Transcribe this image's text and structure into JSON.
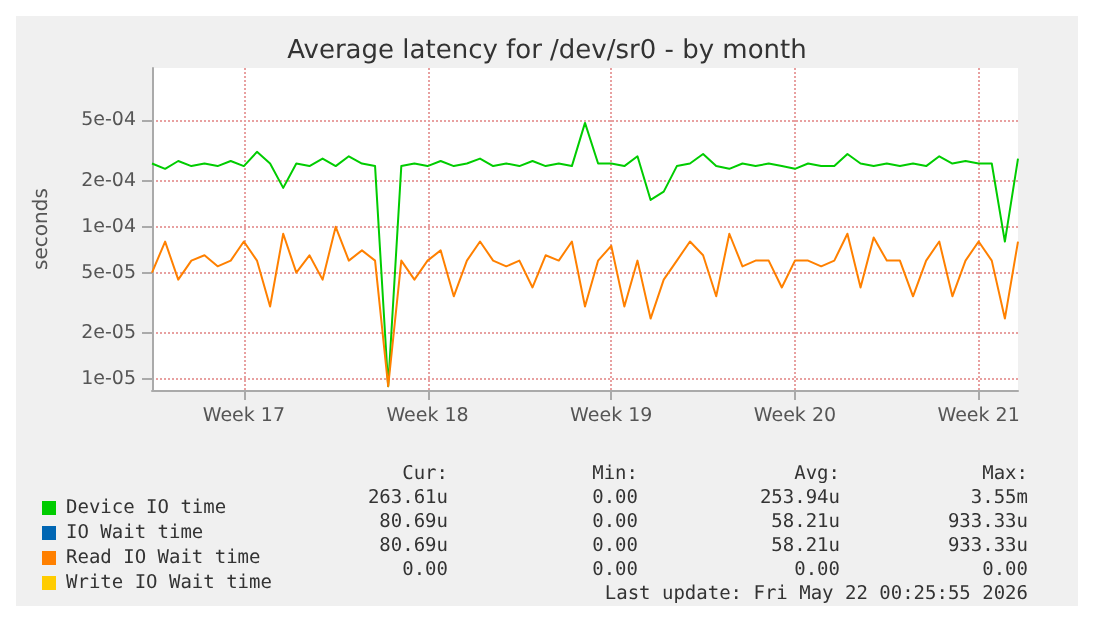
{
  "chart_data": {
    "type": "line",
    "title": "Average latency for /dev/sr0 - by month",
    "ylabel": "seconds",
    "categories": [
      null,
      null,
      null,
      null,
      null,
      null,
      null,
      "Week 17",
      null,
      null,
      null,
      null,
      null,
      null,
      null,
      null,
      null,
      null,
      null,
      null,
      null,
      "Week 18",
      null,
      null,
      null,
      null,
      null,
      null,
      null,
      null,
      null,
      null,
      null,
      null,
      null,
      "Week 19",
      null,
      null,
      null,
      null,
      null,
      null,
      null,
      null,
      null,
      null,
      null,
      null,
      null,
      "Week 20",
      null,
      null,
      null,
      null,
      null,
      null,
      null,
      null,
      null,
      null,
      null,
      null,
      null,
      "Week 21",
      null,
      null,
      null
    ],
    "series": [
      {
        "name": "Device IO time",
        "color": "#00cc00",
        "values": [
          0.00026,
          0.00024,
          0.00027,
          0.00025,
          0.00026,
          0.00025,
          0.00027,
          0.00025,
          0.00031,
          0.00026,
          0.00018,
          0.00026,
          0.00025,
          0.00028,
          0.00025,
          0.00029,
          0.00026,
          0.00025,
          9e-06,
          0.00025,
          0.00026,
          0.00025,
          0.00027,
          0.00025,
          0.00026,
          0.00028,
          0.00025,
          0.00026,
          0.00025,
          0.00027,
          0.00025,
          0.00026,
          0.00025,
          0.00048,
          0.00026,
          0.00026,
          0.00025,
          0.00029,
          0.00015,
          0.00017,
          0.00025,
          0.00026,
          0.0003,
          0.00025,
          0.00024,
          0.00026,
          0.00025,
          0.00026,
          0.00025,
          0.00024,
          0.00026,
          0.00025,
          0.00025,
          0.0003,
          0.00026,
          0.00025,
          0.00026,
          0.00025,
          0.00026,
          0.00025,
          0.00029,
          0.00026,
          0.00027,
          0.00026,
          0.00026,
          8e-05,
          0.00028
        ]
      },
      {
        "name": "IO Wait time",
        "color": "#0066b3",
        "values": [
          null,
          null,
          null,
          null,
          null,
          null,
          null,
          null,
          null,
          null,
          null,
          null,
          null,
          null,
          null,
          null,
          null,
          null,
          null,
          null,
          null,
          null,
          null,
          null,
          null,
          null,
          null,
          null,
          null,
          null,
          null,
          null,
          null,
          null,
          null,
          null,
          null,
          null,
          null,
          null,
          null,
          null,
          null,
          null,
          null,
          null,
          null,
          null,
          null,
          null,
          null,
          null,
          null,
          null,
          null,
          null,
          null,
          null,
          null,
          null,
          null,
          null,
          null,
          null,
          null,
          null,
          null
        ]
      },
      {
        "name": "Read IO Wait time",
        "color": "#ff8000",
        "values": [
          5e-05,
          8e-05,
          4.5e-05,
          6e-05,
          6.5e-05,
          5.5e-05,
          6e-05,
          8e-05,
          6e-05,
          3e-05,
          9e-05,
          5e-05,
          6.5e-05,
          4.5e-05,
          0.0001,
          6e-05,
          7e-05,
          6e-05,
          9e-06,
          6e-05,
          4.5e-05,
          6e-05,
          7e-05,
          3.5e-05,
          6e-05,
          8e-05,
          6e-05,
          5.5e-05,
          6e-05,
          4e-05,
          6.5e-05,
          6e-05,
          8e-05,
          3e-05,
          6e-05,
          7.5e-05,
          3e-05,
          6e-05,
          2.5e-05,
          4.5e-05,
          6e-05,
          8e-05,
          6.5e-05,
          3.5e-05,
          9e-05,
          5.5e-05,
          6e-05,
          6e-05,
          4e-05,
          6e-05,
          6e-05,
          5.5e-05,
          6e-05,
          9e-05,
          4e-05,
          8.5e-05,
          6e-05,
          6e-05,
          3.5e-05,
          6e-05,
          8e-05,
          3.5e-05,
          6e-05,
          8e-05,
          6e-05,
          2.5e-05,
          8e-05
        ]
      },
      {
        "name": "Write IO Wait time",
        "color": "#ffcc00",
        "values": [
          null,
          null,
          null,
          null,
          null,
          null,
          null,
          null,
          null,
          null,
          null,
          null,
          null,
          null,
          null,
          null,
          null,
          null,
          null,
          null,
          null,
          null,
          null,
          null,
          null,
          null,
          null,
          null,
          null,
          null,
          null,
          null,
          null,
          null,
          null,
          null,
          null,
          null,
          null,
          null,
          null,
          null,
          null,
          null,
          null,
          null,
          null,
          null,
          null,
          null,
          null,
          null,
          null,
          null,
          null,
          null,
          null,
          null,
          null,
          null,
          null,
          null,
          null,
          null,
          null,
          null,
          null
        ]
      }
    ],
    "ylim": [
      8.5e-06,
      0.0011
    ],
    "yticks": [
      {
        "value": 1e-05,
        "label": "1e-05"
      },
      {
        "value": 2e-05,
        "label": "2e-05"
      },
      {
        "value": 5e-05,
        "label": "5e-05"
      },
      {
        "value": 0.0001,
        "label": "1e-04"
      },
      {
        "value": 0.0002,
        "label": "2e-04"
      },
      {
        "value": 0.0005,
        "label": "5e-04"
      }
    ],
    "log": "y",
    "grid": true,
    "legend": "bottom left",
    "marker": "none",
    "line_style": "solid",
    "annotations": [
      "Cur:",
      "Min:",
      "Avg:",
      "Max:",
      "263.61u",
      "0.00",
      "253.94u",
      "3.55m",
      "80.69u",
      "0.00",
      "58.21u",
      "933.33u",
      "80.69u",
      "0.00",
      "58.21u",
      "933.33u",
      "0.00",
      "0.00",
      "0.00",
      "0.00",
      "Last update: Fri May 22 00:25:55 2026"
    ]
  }
}
